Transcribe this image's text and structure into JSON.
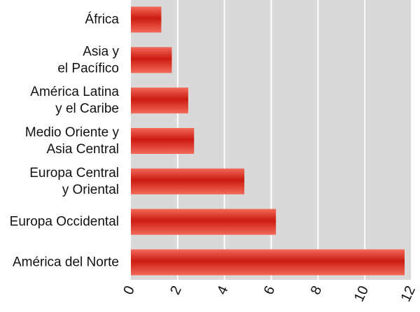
{
  "chart_data": {
    "type": "bar",
    "orientation": "horizontal",
    "categories": [
      [
        "África"
      ],
      [
        "Asia y",
        "el Pacífico"
      ],
      [
        "América Latina",
        "y el Caribe"
      ],
      [
        "Medio Oriente y",
        "Asia Central"
      ],
      [
        "Europa Central",
        "y Oriental"
      ],
      [
        "Europa Occidental"
      ],
      [
        "América del Norte"
      ]
    ],
    "values": [
      1.3,
      1.75,
      2.45,
      2.7,
      4.85,
      6.2,
      11.7
    ],
    "xlim": [
      0,
      12
    ],
    "xticks": [
      0,
      2,
      4,
      6,
      8,
      10,
      12
    ],
    "tick_labels": [
      "0",
      "2",
      "4",
      "6",
      "8",
      "10",
      "12"
    ],
    "grid": true,
    "title": "",
    "xlabel": "",
    "ylabel": "",
    "colors": {
      "plot_background": "#d9d9d9",
      "gridline": "#ffffff",
      "bar_dark": "#cc1b10",
      "bar_light": "#f26a5a"
    }
  }
}
